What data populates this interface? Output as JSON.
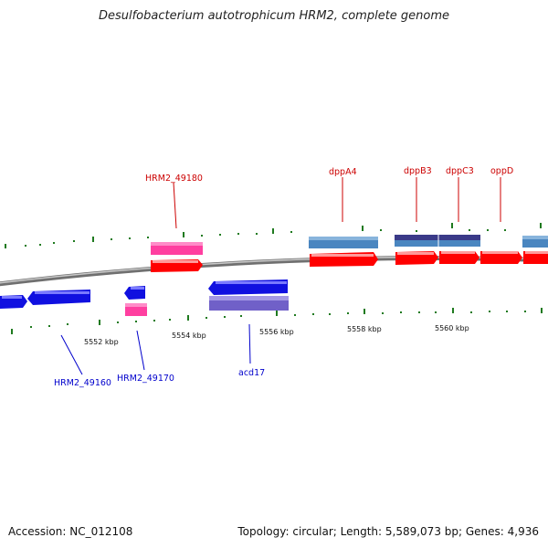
{
  "title": "Desulfobacterium autotrophicum HRM2, complete genome",
  "footer": {
    "accession": "Accession: NC_012108",
    "summary": "Topology: circular; Length: 5,589,073 bp; Genes: 4,936"
  },
  "scale_ticks": [
    "5552 kbp",
    "5554 kbp",
    "5556 kbp",
    "5558 kbp",
    "5560 kbp"
  ],
  "gene_labels": {
    "top": [
      "HRM2_49180",
      "dppA4",
      "dppB3",
      "dppC3",
      "oppD"
    ],
    "bottom": [
      "HRM2_49160",
      "HRM2_49170",
      "acd17"
    ]
  },
  "colors": {
    "forward_cds": "#ff0000",
    "reverse_cds": "#1010e0",
    "forward_gene_top": "#4a86c0",
    "forward_gene_dark": "#3a3a88",
    "pink_gene": "#ff3fa0",
    "reverse_gene_lower": "#7060c8",
    "top_label": "#cc0000",
    "bottom_label": "#0000cc",
    "tick": "#1f7a1f",
    "backbone": "#888888"
  }
}
